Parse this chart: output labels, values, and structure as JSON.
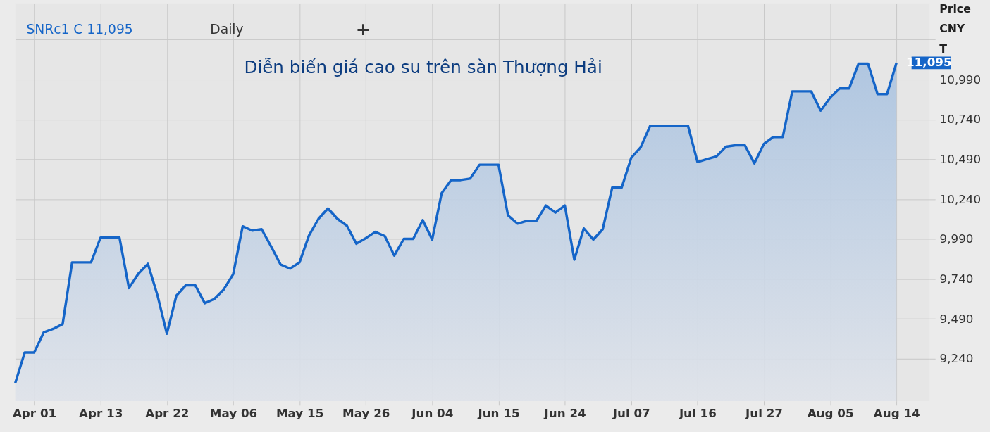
{
  "chart_data": {
    "type": "area",
    "title": "Diễn biến giá cao su trên sàn Thượng Hải",
    "ylabel": "Price CNY T",
    "categories": [
      null,
      null,
      "Apr 01",
      null,
      null,
      null,
      null,
      null,
      null,
      "Apr 13",
      null,
      null,
      null,
      null,
      null,
      null,
      "Apr 22",
      null,
      null,
      null,
      null,
      null,
      null,
      "May 06",
      null,
      null,
      null,
      null,
      null,
      null,
      "May 15",
      null,
      null,
      null,
      null,
      null,
      null,
      "May 26",
      null,
      null,
      null,
      null,
      null,
      null,
      "Jun 04",
      null,
      null,
      null,
      null,
      null,
      null,
      "Jun 15",
      null,
      null,
      null,
      null,
      null,
      null,
      "Jun 24",
      null,
      null,
      null,
      null,
      null,
      null,
      "Jul 07",
      null,
      null,
      null,
      null,
      null,
      null,
      "Jul 16",
      null,
      null,
      null,
      null,
      null,
      null,
      "Jul 27",
      null,
      null,
      null,
      null,
      null,
      null,
      "Aug 05",
      null,
      null,
      null,
      null,
      null,
      null,
      "Aug 14"
    ],
    "series": [
      {
        "color": "#1565c8",
        "values": [
          9088,
          9279,
          9279,
          9405,
          9427,
          9457,
          9844,
          9844,
          9844,
          9999,
          9999,
          9999,
          9683,
          9774,
          9835,
          9640,
          9397,
          9635,
          9700,
          9700,
          9588,
          9614,
          9674,
          9770,
          10070,
          10043,
          10052,
          9944,
          9831,
          9805,
          9844,
          10013,
          10117,
          10182,
          10117,
          10074,
          9961,
          9996,
          10035,
          10009,
          9887,
          9991,
          9991,
          10109,
          9987,
          10278,
          10360,
          10360,
          10369,
          10456,
          10456,
          10456,
          10139,
          10087,
          10104,
          10104,
          10200,
          10156,
          10200,
          9861,
          10057,
          9987,
          10052,
          10313,
          10313,
          10499,
          10565,
          10699,
          10699,
          10699,
          10699,
          10699,
          10473,
          10491,
          10508,
          10569,
          10578,
          10578,
          10465,
          10586,
          10630,
          10630,
          10916,
          10916,
          10916,
          10795,
          10877,
          10934,
          10934,
          11090,
          11090,
          10899,
          10899,
          11095
        ],
        "value_labels": [
          null,
          null,
          null,
          null,
          null,
          null,
          null,
          null,
          null,
          null,
          null,
          null,
          null,
          null,
          null,
          null,
          null,
          null,
          null,
          null,
          null,
          null,
          null,
          null,
          null,
          null,
          null,
          null,
          null,
          null,
          null,
          null,
          null,
          null,
          null,
          null,
          null,
          null,
          null,
          null,
          null,
          null,
          null,
          null,
          null,
          null,
          null,
          null,
          null,
          null,
          null,
          null,
          null,
          null,
          null,
          null,
          null,
          null,
          null,
          null,
          null,
          null,
          null,
          null,
          null,
          null,
          null,
          null,
          null,
          null,
          null,
          null,
          null,
          null,
          null,
          null,
          null,
          null,
          null,
          null,
          null,
          null,
          null,
          null,
          null,
          null,
          null,
          null,
          null,
          null,
          null,
          null,
          null,
          "11,095"
        ]
      }
    ],
    "ylim": [
      8975,
      11468
    ],
    "yticks": [
      {
        "value": 9240,
        "label": "9,240"
      },
      {
        "value": 9490,
        "label": "9,490"
      },
      {
        "value": 9740,
        "label": "9,740"
      },
      {
        "value": 9990,
        "label": "9,990"
      },
      {
        "value": 10240,
        "label": "10,240"
      },
      {
        "value": 10490,
        "label": "10,490"
      },
      {
        "value": 10740,
        "label": "10,740"
      },
      {
        "value": 10990,
        "label": "10,990"
      },
      {
        "value": 11240,
        "label": null
      }
    ],
    "grid": true,
    "annotations": [
      "SNRc1 C 11,095",
      "Daily",
      "+"
    ]
  }
}
